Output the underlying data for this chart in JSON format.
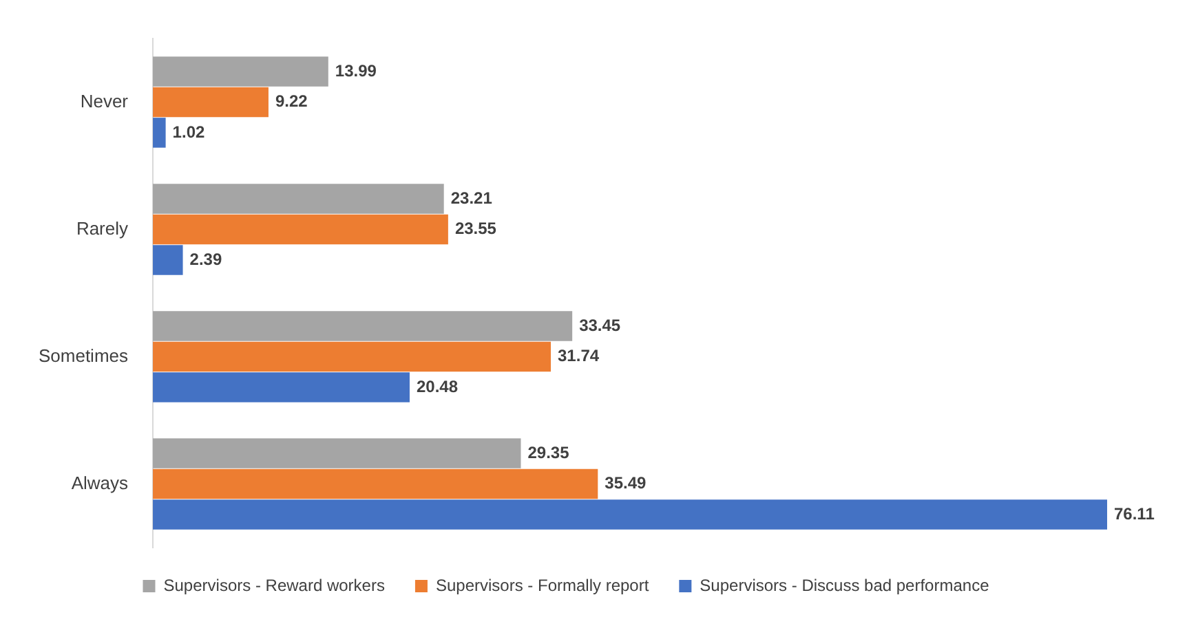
{
  "chart_data": {
    "type": "bar",
    "orientation": "horizontal",
    "categories": [
      "Never",
      "Rarely",
      "Sometimes",
      "Always"
    ],
    "series": [
      {
        "name": "Supervisors - Reward workers",
        "color": "#a5a5a5",
        "values": [
          13.99,
          23.21,
          33.45,
          29.35
        ]
      },
      {
        "name": "Supervisors - Formally report",
        "color": "#ed7d31",
        "values": [
          9.22,
          23.55,
          31.74,
          35.49
        ]
      },
      {
        "name": "Supervisors - Discuss bad performance",
        "color": "#4472c4",
        "values": [
          1.02,
          2.39,
          20.48,
          76.11
        ]
      }
    ],
    "data_labels": true,
    "legend": "bottom",
    "grid": false
  }
}
